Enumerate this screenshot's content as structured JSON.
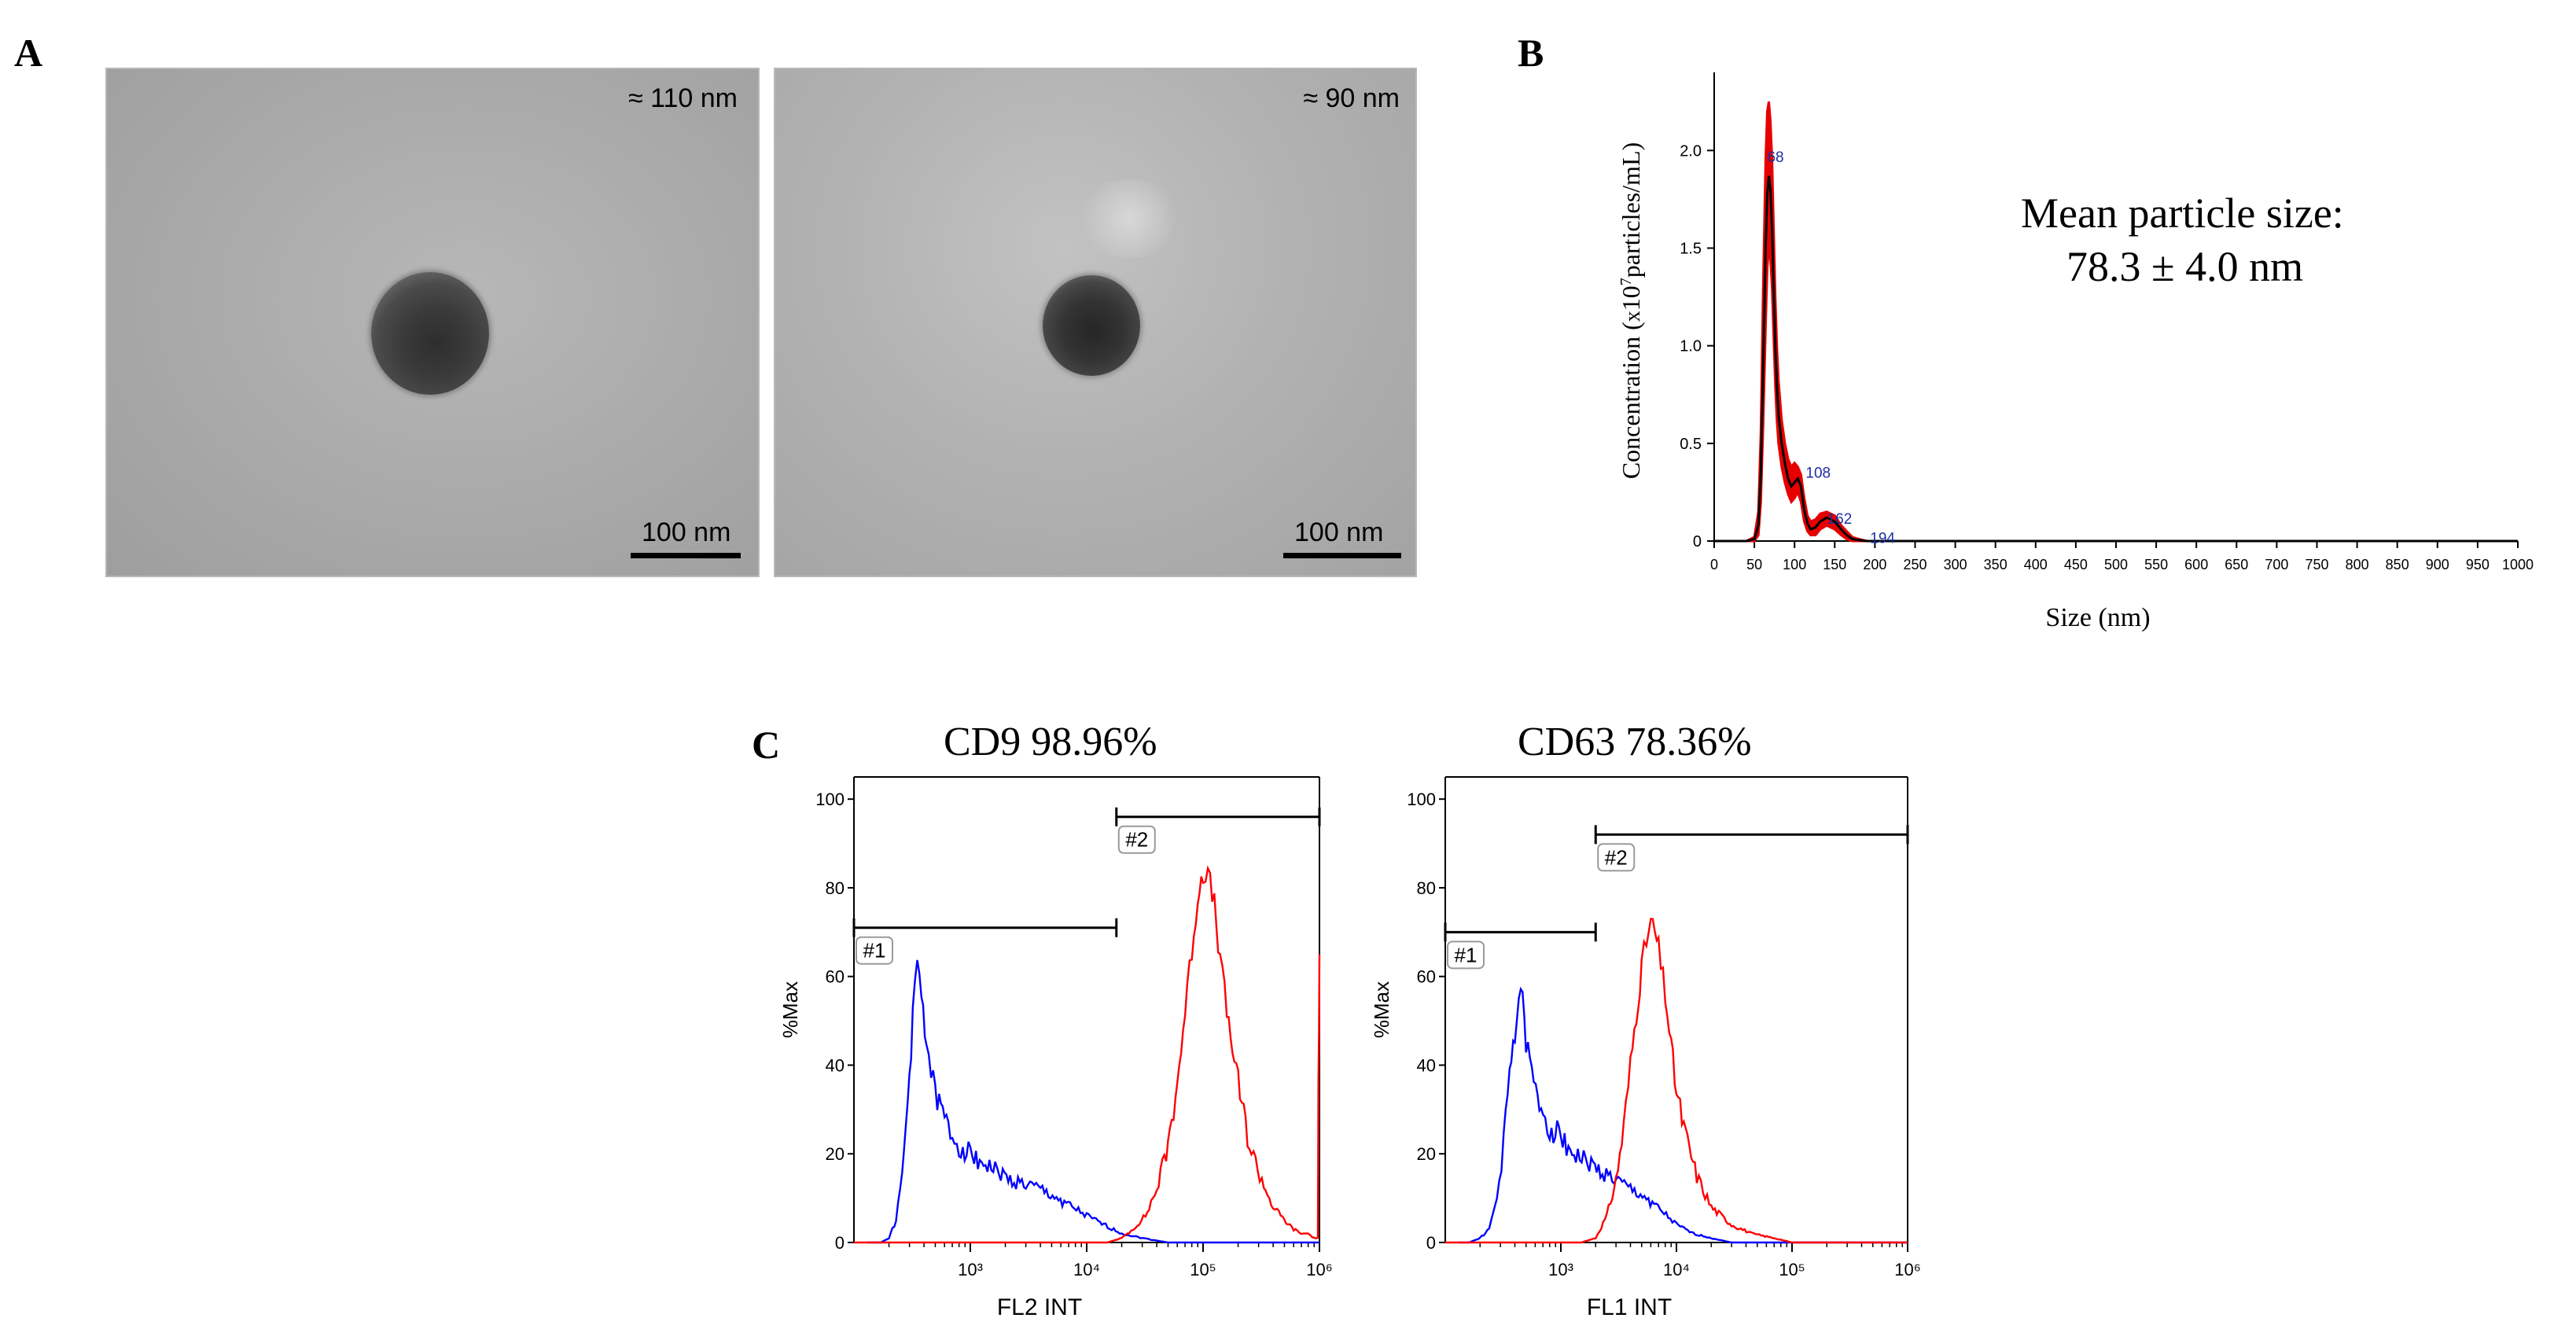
{
  "panel_a": {
    "letter": "A",
    "images": [
      {
        "size_label": "≈ 110 nm",
        "scale_label": "100 nm"
      },
      {
        "size_label": "≈ 90 nm",
        "scale_label": "100 nm"
      }
    ]
  },
  "panel_b": {
    "letter": "B",
    "annotation_line1": "Mean particle size:",
    "annotation_line2": "78.3  ± 4.0 nm"
  },
  "panel_c": {
    "letter": "C"
  },
  "chart_data": [
    {
      "type": "line",
      "title": "",
      "xlabel": "Size (nm)",
      "ylabel": "Concentration (x10⁷ particles/mL)",
      "xlim": [
        0,
        1000
      ],
      "ylim": [
        0,
        2.4
      ],
      "xticks": [
        0,
        50,
        100,
        150,
        200,
        250,
        300,
        350,
        400,
        450,
        500,
        550,
        600,
        650,
        700,
        750,
        800,
        850,
        900,
        950,
        1000
      ],
      "yticks": [
        0,
        0.5,
        1.0,
        1.5,
        2.0
      ],
      "ytick_labels": [
        "0",
        "0.5",
        "1.0",
        "1.5",
        "2.0"
      ],
      "peak_labels": [
        "68",
        "108",
        "162",
        "194"
      ],
      "series": [
        {
          "name": "mean",
          "x": [
            0,
            40,
            50,
            55,
            58,
            61,
            64,
            66,
            68,
            70,
            72,
            74,
            76,
            78,
            80,
            84,
            88,
            92,
            96,
            100,
            104,
            108,
            112,
            116,
            120,
            126,
            132,
            140,
            150,
            158,
            165,
            172,
            180,
            190,
            200,
            230,
            1000
          ],
          "y": [
            0,
            0,
            0.01,
            0.08,
            0.35,
            0.9,
            1.5,
            1.78,
            1.87,
            1.8,
            1.6,
            1.3,
            1.0,
            0.8,
            0.65,
            0.5,
            0.4,
            0.32,
            0.28,
            0.3,
            0.32,
            0.28,
            0.16,
            0.09,
            0.06,
            0.07,
            0.1,
            0.12,
            0.1,
            0.06,
            0.03,
            0.01,
            0.005,
            0,
            0,
            0,
            0
          ]
        },
        {
          "name": "upper",
          "x": [
            0,
            40,
            50,
            55,
            58,
            61,
            64,
            66,
            68,
            70,
            72,
            74,
            76,
            78,
            80,
            84,
            88,
            92,
            96,
            100,
            104,
            108,
            112,
            116,
            120,
            126,
            132,
            140,
            150,
            158,
            165,
            172,
            180,
            190,
            200,
            230,
            1000
          ],
          "y": [
            0,
            0,
            0.02,
            0.15,
            0.55,
            1.3,
            1.95,
            2.2,
            2.25,
            2.15,
            1.95,
            1.6,
            1.25,
            1.0,
            0.82,
            0.62,
            0.5,
            0.42,
            0.38,
            0.4,
            0.38,
            0.34,
            0.22,
            0.13,
            0.1,
            0.11,
            0.14,
            0.15,
            0.13,
            0.08,
            0.05,
            0.02,
            0.01,
            0,
            0,
            0,
            0
          ]
        },
        {
          "name": "lower",
          "x": [
            0,
            40,
            50,
            55,
            58,
            61,
            64,
            66,
            68,
            70,
            72,
            74,
            76,
            78,
            80,
            84,
            88,
            92,
            96,
            100,
            104,
            108,
            112,
            116,
            120,
            126,
            132,
            140,
            150,
            158,
            165,
            172,
            180,
            190,
            200,
            230,
            1000
          ],
          "y": [
            0,
            0,
            0,
            0.03,
            0.2,
            0.6,
            1.1,
            1.4,
            1.5,
            1.45,
            1.3,
            1.05,
            0.8,
            0.62,
            0.5,
            0.38,
            0.3,
            0.24,
            0.2,
            0.22,
            0.25,
            0.2,
            0.1,
            0.05,
            0.03,
            0.03,
            0.06,
            0.08,
            0.06,
            0.03,
            0.01,
            0,
            0,
            0,
            0,
            0,
            0
          ]
        }
      ]
    },
    {
      "type": "line",
      "title": "CD9    98.96%",
      "xlabel": "FL2 INT",
      "ylabel": "%Max",
      "xscale": "log",
      "xlim": [
        100,
        1000000
      ],
      "ylim": [
        0,
        105
      ],
      "yticks": [
        0,
        20,
        40,
        60,
        80,
        100
      ],
      "xtick_labels": [
        "10³",
        "10⁴",
        "10⁵",
        "10⁶"
      ],
      "xtick_values": [
        1000,
        10000,
        100000,
        1000000
      ],
      "gates": [
        {
          "label": "#1",
          "from": 100,
          "to": 18000,
          "y": 71
        },
        {
          "label": "#2",
          "from": 18000,
          "to": 1000000,
          "y": 96
        }
      ],
      "series": [
        {
          "name": "isotype",
          "color": "#0000ff",
          "x": [
            130,
            170,
            200,
            230,
            260,
            290,
            320,
            350,
            380,
            420,
            460,
            520,
            600,
            700,
            800,
            1000,
            1300,
            1700,
            2200,
            3000,
            4000,
            5500,
            7500,
            10000,
            14000,
            20000,
            30000,
            50000,
            100000,
            1000000
          ],
          "y": [
            0,
            0,
            1,
            5,
            15,
            32,
            50,
            63,
            56,
            46,
            38,
            32,
            28,
            24,
            22,
            20,
            18,
            16,
            14,
            13,
            12,
            10,
            8,
            6,
            4,
            2,
            1,
            0,
            0,
            0
          ]
        },
        {
          "name": "CD9",
          "color": "#ff0000",
          "x": [
            100,
            10000,
            15000,
            20000,
            25000,
            32000,
            40000,
            50000,
            60000,
            70000,
            80000,
            90000,
            100000,
            110000,
            125000,
            140000,
            160000,
            200000,
            250000,
            320000,
            400000,
            500000,
            600000,
            700000,
            800000,
            900000,
            950000,
            970000,
            980000,
            1000000
          ],
          "y": [
            0,
            0,
            0,
            1,
            3,
            6,
            12,
            22,
            36,
            52,
            66,
            78,
            84,
            83,
            76,
            64,
            52,
            36,
            22,
            14,
            8,
            5,
            3,
            2,
            2,
            1,
            1,
            1,
            35,
            65
          ]
        }
      ]
    },
    {
      "type": "line",
      "title": "CD63    78.36%",
      "xlabel": "FL1 INT",
      "ylabel": "%Max",
      "xscale": "log",
      "xlim": [
        100,
        1000000
      ],
      "ylim": [
        0,
        105
      ],
      "yticks": [
        0,
        20,
        40,
        60,
        80,
        100
      ],
      "xtick_labels": [
        "10³",
        "10⁴",
        "10⁵",
        "10⁶"
      ],
      "xtick_values": [
        1000,
        10000,
        100000,
        1000000
      ],
      "gates": [
        {
          "label": "#1",
          "from": 100,
          "to": 2000,
          "y": 70
        },
        {
          "label": "#2",
          "from": 2000,
          "to": 1000000,
          "y": 92
        }
      ],
      "series": [
        {
          "name": "isotype",
          "color": "#0000ff",
          "x": [
            130,
            160,
            200,
            240,
            280,
            320,
            360,
            400,
            450,
            500,
            560,
            630,
            700,
            800,
            1000,
            1300,
            1700,
            2200,
            3000,
            4000,
            5500,
            7500,
            10000,
            14000,
            20000,
            30000,
            50000,
            1000000
          ],
          "y": [
            0,
            0,
            1,
            3,
            10,
            22,
            38,
            48,
            58,
            45,
            38,
            32,
            30,
            26,
            24,
            20,
            18,
            16,
            14,
            12,
            10,
            7,
            4,
            2,
            1,
            0,
            0,
            0
          ]
        },
        {
          "name": "CD63",
          "color": "#ff0000",
          "x": [
            100,
            1500,
            2000,
            2500,
            3000,
            3500,
            4000,
            4500,
            5000,
            5500,
            6000,
            6500,
            7000,
            8000,
            9000,
            10000,
            12000,
            15000,
            20000,
            30000,
            45000,
            70000,
            100000,
            200000,
            1000000
          ],
          "y": [
            0,
            0,
            1,
            6,
            14,
            26,
            40,
            52,
            62,
            68,
            72,
            70,
            66,
            56,
            44,
            34,
            24,
            15,
            8,
            4,
            2,
            1,
            0,
            0,
            0
          ]
        }
      ]
    }
  ]
}
